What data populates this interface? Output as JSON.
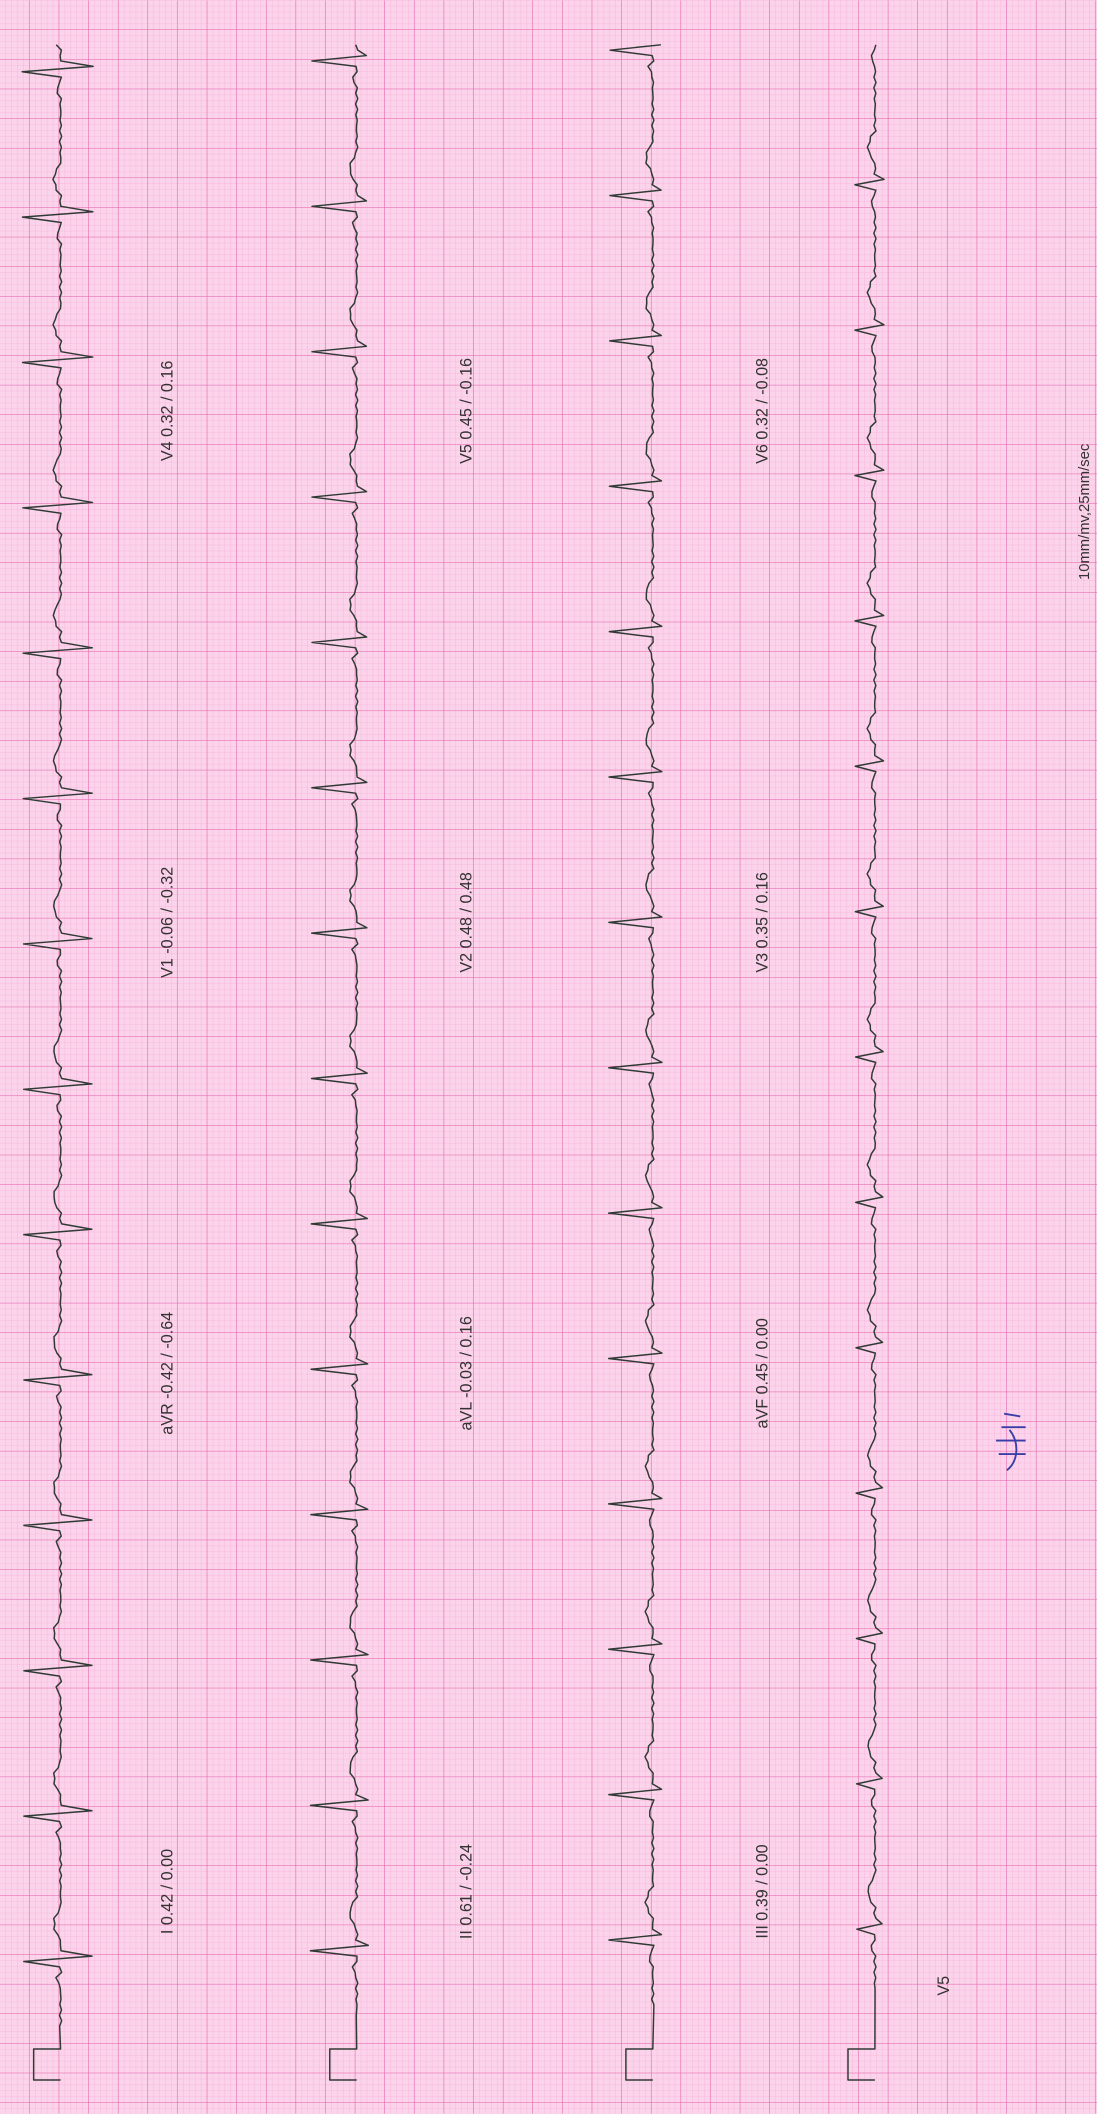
{
  "leads": [
    {
      "label": "I 0.42 / 0.00"
    },
    {
      "label": "aVR -0.42 / -0.64"
    },
    {
      "label": "V1 -0.06 / -0.32"
    },
    {
      "label": "V4 0.32 / 0.16"
    },
    {
      "label": "II 0.61 / -0.24"
    },
    {
      "label": "aVL -0.03 / 0.16"
    },
    {
      "label": "V2 0.48 / 0.48"
    },
    {
      "label": "V5 0.45 / -0.16"
    },
    {
      "label": "III 0.39 / 0.00"
    },
    {
      "label": "aVF 0.45 / 0.00"
    },
    {
      "label": "V3 0.35 / 0.16"
    },
    {
      "label": "V6 0.32 / -0.08"
    }
  ],
  "rhythm_label": "V5",
  "footer": "10mm/mv,25mm/sec"
}
